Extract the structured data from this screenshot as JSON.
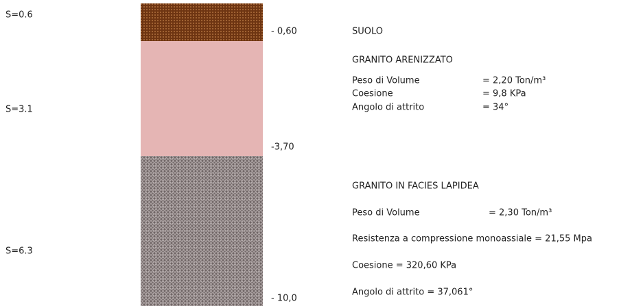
{
  "layers": [
    {
      "thickness": "S=0.6",
      "depth": "- 0,60"
    },
    {
      "thickness": "S=3.1",
      "depth": "-3,70"
    },
    {
      "thickness": "S=6.3",
      "depth": "- 10,0"
    }
  ],
  "soil": {
    "title": "SUOLO"
  },
  "sandy_granite": {
    "title": "GRANITO ARENIZZATO",
    "properties": [
      {
        "name": "Peso di Volume",
        "value": "= 2,20 Ton/m³"
      },
      {
        "name": "Coesione",
        "value": "= 9,8 KPa"
      },
      {
        "name": "Angolo di attrito",
        "value": " = 34°"
      }
    ]
  },
  "stone_granite": {
    "title": "GRANITO IN FACIES LAPIDEA",
    "weight_name": "Peso di Volume",
    "weight_value": "= 2,30 Ton/m³",
    "lines": [
      "Resistenza a compressione monoassiale = 21,55 Mpa",
      "Coesione = 320,60 KPa",
      "Angolo di attrito = 37,061°"
    ]
  }
}
